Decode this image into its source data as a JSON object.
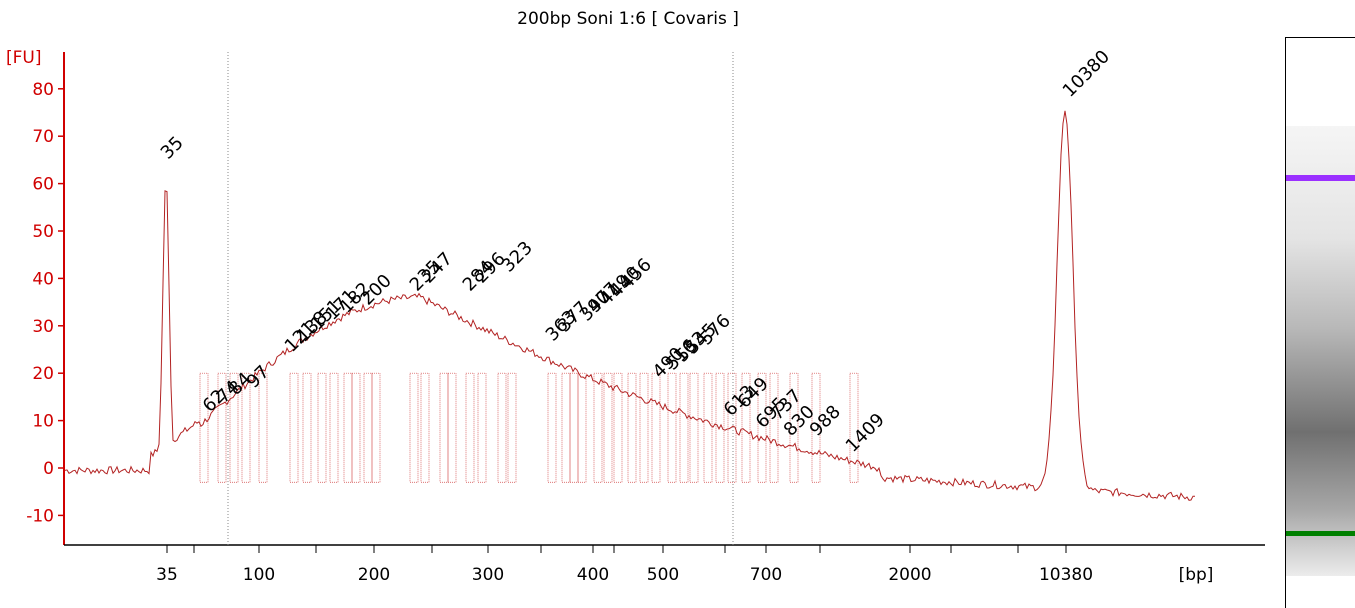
{
  "chart_data": {
    "type": "line",
    "title": "200bp Soni 1:6   [ Covaris ]",
    "ylabel": "[FU]",
    "xlabel": "[bp]",
    "ylim": [
      -15,
      85
    ],
    "y_ticks": [
      "-10",
      "0",
      "10",
      "20",
      "30",
      "40",
      "50",
      "60",
      "70",
      "80"
    ],
    "x_ticks": [
      "35",
      "100",
      "200",
      "300",
      "400",
      "500",
      "700",
      "2000",
      "10380"
    ],
    "marker_labels": [
      {
        "text": "35",
        "color": "#008000"
      },
      {
        "text": "10380",
        "color": "#8a2be2"
      }
    ],
    "peak_labels": [
      "62",
      "74",
      "84",
      "97",
      "121",
      "138",
      "151",
      "171",
      "182",
      "200",
      "235",
      "247",
      "284",
      "296",
      "323",
      "363",
      "377",
      "397",
      "407",
      "419",
      "440",
      "456",
      "490",
      "516",
      "533",
      "545",
      "576",
      "613",
      "649",
      "695",
      "737",
      "830",
      "988",
      "1409"
    ],
    "series": [
      {
        "color": "#b22222",
        "x": [
          "35",
          "62",
          "100",
          "150",
          "200",
          "250",
          "300",
          "350",
          "400",
          "450",
          "500",
          "600",
          "700",
          "1000",
          "1409",
          "2000",
          "10380"
        ],
        "values": [
          62,
          10,
          14,
          28,
          34,
          36,
          35,
          30,
          25,
          21,
          16,
          10,
          6,
          3,
          1,
          -1,
          78
        ]
      }
    ]
  },
  "gel": {
    "upper_marker_color": "#9b30ff",
    "lower_marker_color": "#008000"
  }
}
